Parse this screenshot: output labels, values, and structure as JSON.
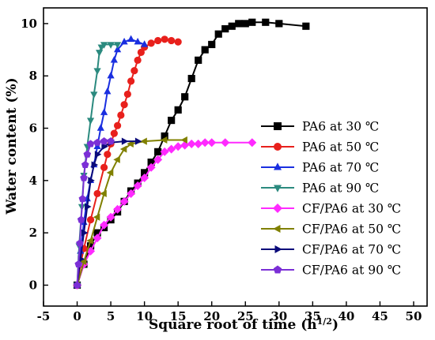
{
  "chart_data": {
    "type": "scatter",
    "title": "",
    "xlabel": "Square root of time (h",
    "xlabel_sup": "1/2",
    "xlabel_close": ")",
    "ylabel": "Water content (%)",
    "xlim": [
      -5,
      52
    ],
    "ylim": [
      -0.8,
      10.6
    ],
    "x_ticks": [
      -5,
      0,
      5,
      10,
      15,
      20,
      25,
      30,
      35,
      40,
      45,
      50
    ],
    "y_ticks": [
      0,
      2,
      4,
      6,
      8,
      10
    ],
    "grid": false,
    "legend_position": "right",
    "series": [
      {
        "name": "PA6 at 30 ℃",
        "color": "#000000",
        "marker": "square",
        "points": [
          [
            0,
            0
          ],
          [
            1,
            0.8
          ],
          [
            2,
            1.5
          ],
          [
            3,
            2.0
          ],
          [
            4,
            2.2
          ],
          [
            5,
            2.5
          ],
          [
            6,
            2.8
          ],
          [
            7,
            3.2
          ],
          [
            8,
            3.6
          ],
          [
            9,
            3.9
          ],
          [
            10,
            4.3
          ],
          [
            11,
            4.7
          ],
          [
            12,
            5.1
          ],
          [
            13,
            5.7
          ],
          [
            14,
            6.3
          ],
          [
            15,
            6.7
          ],
          [
            16,
            7.2
          ],
          [
            17,
            7.9
          ],
          [
            18,
            8.6
          ],
          [
            19,
            9.0
          ],
          [
            20,
            9.2
          ],
          [
            21,
            9.6
          ],
          [
            22,
            9.8
          ],
          [
            23,
            9.9
          ],
          [
            24,
            10.0
          ],
          [
            25,
            10.0
          ],
          [
            26,
            10.05
          ],
          [
            28,
            10.05
          ],
          [
            30,
            10.0
          ],
          [
            34,
            9.9
          ]
        ]
      },
      {
        "name": "PA6 at 50 ℃",
        "color": "#e8201c",
        "marker": "circle",
        "points": [
          [
            0,
            0
          ],
          [
            0.5,
            0.8
          ],
          [
            1,
            1.4
          ],
          [
            2,
            2.5
          ],
          [
            3,
            3.5
          ],
          [
            4,
            4.5
          ],
          [
            4.5,
            5.0
          ],
          [
            5,
            5.4
          ],
          [
            5.5,
            5.8
          ],
          [
            6,
            6.1
          ],
          [
            6.5,
            6.5
          ],
          [
            7,
            6.9
          ],
          [
            7.5,
            7.3
          ],
          [
            8,
            7.8
          ],
          [
            8.5,
            8.2
          ],
          [
            9,
            8.6
          ],
          [
            9.5,
            8.9
          ],
          [
            10,
            9.1
          ],
          [
            11,
            9.25
          ],
          [
            12,
            9.35
          ],
          [
            13,
            9.4
          ],
          [
            14,
            9.35
          ],
          [
            15,
            9.3
          ]
        ]
      },
      {
        "name": "PA6 at 70 ℃",
        "color": "#1a2fe0",
        "marker": "triangle-up",
        "points": [
          [
            0,
            0
          ],
          [
            0.5,
            1.3
          ],
          [
            1,
            2.4
          ],
          [
            1.5,
            3.3
          ],
          [
            2,
            4.0
          ],
          [
            2.5,
            4.6
          ],
          [
            3,
            5.3
          ],
          [
            3.5,
            6.0
          ],
          [
            4,
            6.6
          ],
          [
            4.5,
            7.4
          ],
          [
            5,
            8.0
          ],
          [
            5.5,
            8.6
          ],
          [
            6,
            9.0
          ],
          [
            7,
            9.3
          ],
          [
            8,
            9.4
          ],
          [
            9,
            9.3
          ],
          [
            10,
            9.2
          ]
        ]
      },
      {
        "name": "PA6 at 90 ℃",
        "color": "#2b8a7f",
        "marker": "triangle-down",
        "points": [
          [
            0,
            0
          ],
          [
            0.3,
            1.5
          ],
          [
            0.7,
            3.0
          ],
          [
            1,
            4.2
          ],
          [
            1.5,
            5.3
          ],
          [
            2,
            6.3
          ],
          [
            2.5,
            7.3
          ],
          [
            3,
            8.2
          ],
          [
            3.3,
            8.9
          ],
          [
            3.6,
            9.1
          ],
          [
            4,
            9.2
          ],
          [
            5,
            9.2
          ],
          [
            6,
            9.2
          ]
        ]
      },
      {
        "name": "CF/PA6 at 30 ℃",
        "color": "#ff2aff",
        "marker": "diamond",
        "points": [
          [
            0,
            0
          ],
          [
            1,
            0.8
          ],
          [
            2,
            1.3
          ],
          [
            3,
            1.8
          ],
          [
            4,
            2.3
          ],
          [
            5,
            2.6
          ],
          [
            6,
            2.9
          ],
          [
            7,
            3.2
          ],
          [
            8,
            3.5
          ],
          [
            9,
            3.8
          ],
          [
            10,
            4.1
          ],
          [
            11,
            4.5
          ],
          [
            12,
            4.8
          ],
          [
            13,
            5.1
          ],
          [
            14,
            5.2
          ],
          [
            15,
            5.3
          ],
          [
            16,
            5.35
          ],
          [
            17,
            5.4
          ],
          [
            18,
            5.4
          ],
          [
            19,
            5.45
          ],
          [
            20,
            5.45
          ],
          [
            22,
            5.45
          ],
          [
            26,
            5.45
          ]
        ]
      },
      {
        "name": "CF/PA6 at 50 ℃",
        "color": "#808000",
        "marker": "triangle-left",
        "points": [
          [
            0,
            0
          ],
          [
            1,
            0.9
          ],
          [
            2,
            1.7
          ],
          [
            3,
            2.6
          ],
          [
            4,
            3.5
          ],
          [
            5,
            4.3
          ],
          [
            6,
            4.8
          ],
          [
            7,
            5.2
          ],
          [
            8,
            5.4
          ],
          [
            10,
            5.5
          ],
          [
            13,
            5.55
          ],
          [
            16,
            5.55
          ]
        ]
      },
      {
        "name": "CF/PA6 at 70 ℃",
        "color": "#0a0a7a",
        "marker": "triangle-right",
        "points": [
          [
            0,
            0
          ],
          [
            0.5,
            1.0
          ],
          [
            1,
            2.0
          ],
          [
            1.5,
            3.0
          ],
          [
            2,
            4.0
          ],
          [
            2.5,
            4.6
          ],
          [
            3,
            5.0
          ],
          [
            4,
            5.3
          ],
          [
            5,
            5.45
          ],
          [
            7,
            5.5
          ],
          [
            9,
            5.5
          ]
        ]
      },
      {
        "name": "CF/PA6 at 90 ℃",
        "color": "#7b2fd6",
        "marker": "pentagon",
        "points": [
          [
            0,
            0
          ],
          [
            0.2,
            0.8
          ],
          [
            0.4,
            1.6
          ],
          [
            0.6,
            2.5
          ],
          [
            0.8,
            3.3
          ],
          [
            1,
            4.1
          ],
          [
            1.2,
            4.6
          ],
          [
            1.5,
            5.0
          ],
          [
            2,
            5.4
          ],
          [
            3,
            5.45
          ],
          [
            4,
            5.5
          ],
          [
            5,
            5.5
          ]
        ]
      }
    ]
  }
}
